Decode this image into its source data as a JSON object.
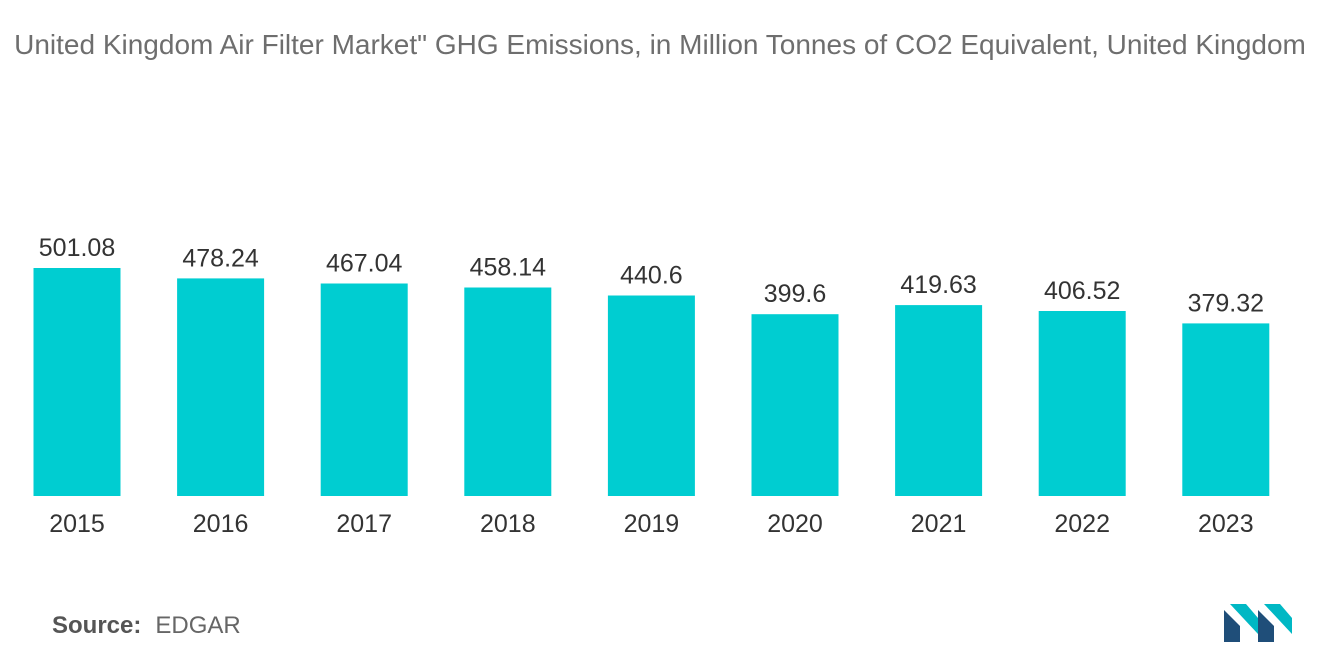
{
  "title": "United Kingdom Air Filter Market\" GHG Emissions, in Million Tonnes of CO2 Equivalent, United Kingdom",
  "source": {
    "label": "Source:",
    "value": "EDGAR"
  },
  "colors": {
    "bar": "#00CDD1",
    "title": "#6e6e6e",
    "text": "#333333",
    "logo_dark": "#1f4e79",
    "logo_light": "#00b8c4"
  },
  "logo": {
    "icon": "mordor-intelligence-logo-icon"
  },
  "chart_data": {
    "type": "bar",
    "title": "United Kingdom Air Filter Market\" GHG Emissions, in Million Tonnes of CO2 Equivalent, United Kingdom",
    "xlabel": "",
    "ylabel": "",
    "categories": [
      "2015",
      "2016",
      "2017",
      "2018",
      "2019",
      "2020",
      "2021",
      "2022",
      "2023"
    ],
    "values": [
      501.08,
      478.24,
      467.04,
      458.14,
      440.6,
      399.6,
      419.63,
      406.52,
      379.32
    ],
    "value_labels": [
      "501.08",
      "478.24",
      "467.04",
      "458.14",
      "440.6",
      "399.6",
      "419.63",
      "406.52",
      "379.32"
    ],
    "ylim": [
      0,
      501.08
    ],
    "grid": false,
    "legend": "none"
  }
}
